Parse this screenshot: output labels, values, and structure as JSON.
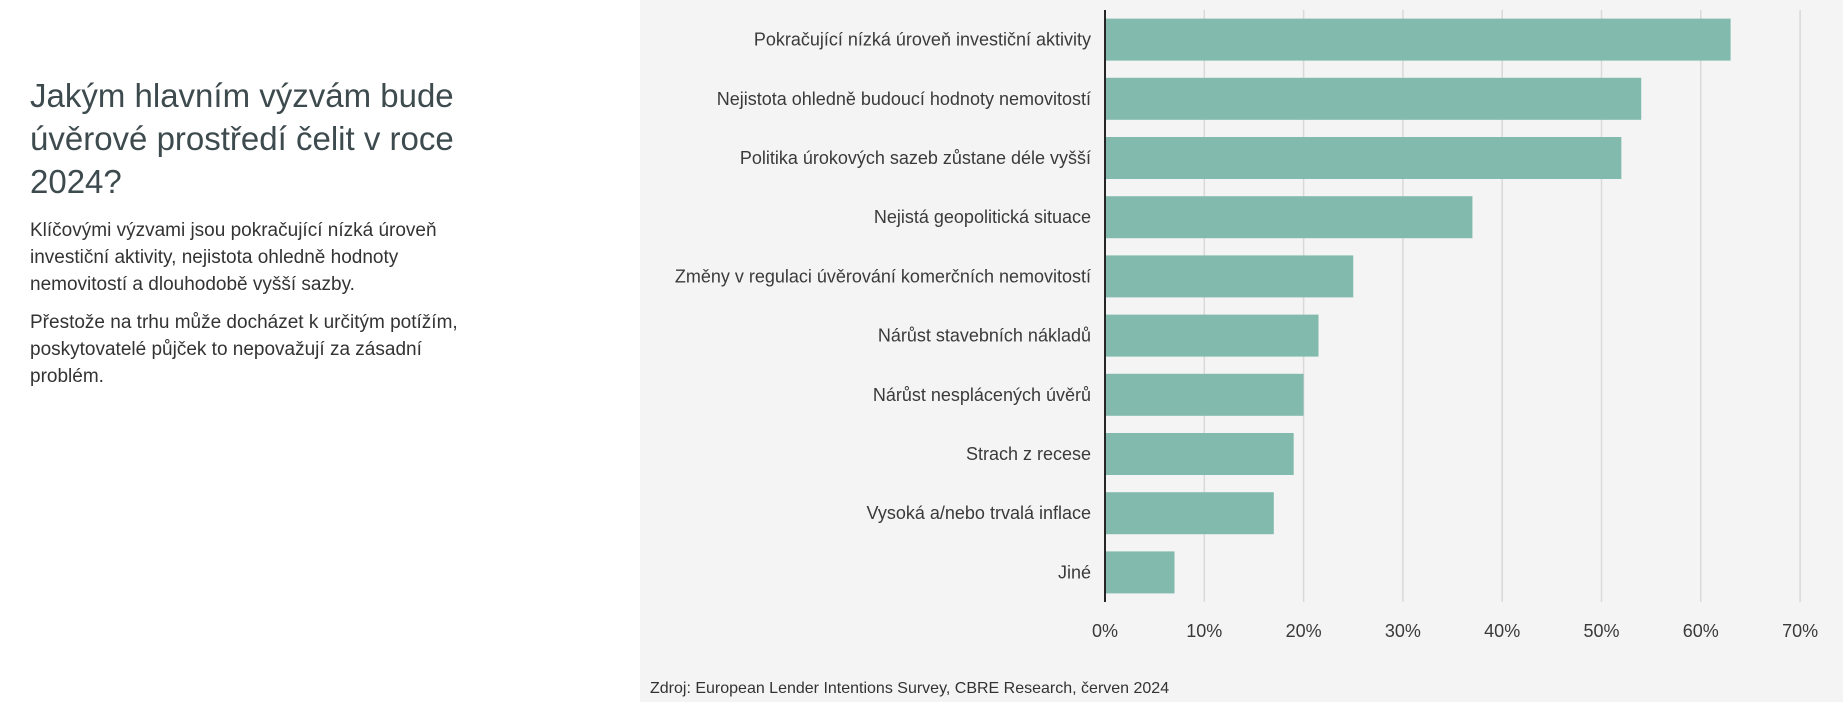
{
  "heading": "Jakým hlavním výzvám bude úvěrové prostředí čelit v roce 2024?",
  "paragraphs": [
    "Klíčovými výzvami jsou pokračující nízká úroveň investiční aktivity, nejistota ohledně hodnoty nemovitostí a dlouhodobě vyšší sazby.",
    "Přestože na trhu může docházet k určitým potížím, poskytovatelé půjček to nepovažují za zásadní problém."
  ],
  "source": "Zdroj: European Lender Intentions Survey, CBRE Research, červen 2024",
  "colors": {
    "bar": "#82bbad",
    "chart_background": "#f4f4f4",
    "gridline": "#d9d9d9",
    "axis": "#262626"
  },
  "chart_data": {
    "type": "bar",
    "orientation": "horizontal",
    "categories": [
      "Pokračující nízká úroveň investiční aktivity",
      "Nejistota ohledně budoucí hodnoty nemovitostí",
      "Politika úrokových sazeb zůstane déle vyšší",
      "Nejistá geopolitická situace",
      "Změny v regulaci úvěrování komerčních nemovitostí",
      "Nárůst stavebních nákladů",
      "Nárůst nesplácených úvěrů",
      "Strach z recese",
      "Vysoká a/nebo trvalá inflace",
      "Jiné"
    ],
    "values": [
      63,
      54,
      52,
      37,
      25,
      21.5,
      20,
      19,
      17,
      7
    ],
    "value_unit": "%",
    "xlim": [
      0,
      70
    ],
    "xticks": [
      0,
      10,
      20,
      30,
      40,
      50,
      60,
      70
    ],
    "xtick_labels": [
      "0%",
      "10%",
      "20%",
      "30%",
      "40%",
      "50%",
      "60%",
      "70%"
    ],
    "grid": "vertical",
    "legend": "none",
    "title": "",
    "xlabel": "",
    "ylabel": ""
  }
}
